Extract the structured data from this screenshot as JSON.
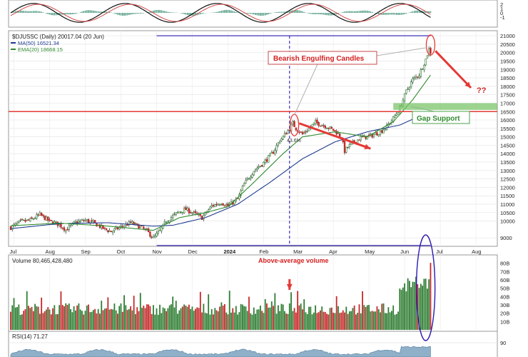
{
  "chart_data": [
    {
      "type": "line",
      "panel": "macd",
      "ylabels": [
        "2",
        "1",
        "0",
        "-1"
      ],
      "yticks": [
        2,
        1,
        0,
        -1
      ]
    },
    {
      "type": "candlestick",
      "panel": "price",
      "title": "$DJUSSC (Daily) 20017.04 (20 Jun)",
      "legend": [
        {
          "label": "MA(50) 16521.34",
          "color": "#1f3b8f"
        },
        {
          "label": "EMA(20) 18668.15",
          "color": "#2f8a2f"
        }
      ],
      "ylabels": [
        "21000",
        "20500",
        "20000",
        "19500",
        "19000",
        "18500",
        "18000",
        "17500",
        "17000",
        "16500",
        "16000",
        "15500",
        "15000",
        "14500",
        "14000",
        "13500",
        "13000",
        "12500",
        "12000",
        "11500",
        "11000",
        "10500",
        "10000",
        "9000"
      ],
      "yticks": [
        21000,
        20500,
        20000,
        19500,
        19000,
        18500,
        18000,
        17500,
        17000,
        16500,
        16000,
        15500,
        15000,
        14500,
        14000,
        13500,
        13000,
        12500,
        12000,
        11500,
        11000,
        10500,
        10000,
        9000
      ],
      "ylim": [
        8500,
        21300
      ],
      "xlabels": [
        "Jul",
        "Aug",
        "Sep",
        "Oct",
        "Nov",
        "Dec",
        "2024",
        "Feb",
        "Mar",
        "Apr",
        "May",
        "Jun",
        "Jul",
        "Aug"
      ],
      "xtick_index": [
        2,
        24,
        46,
        68,
        90,
        112,
        134,
        156,
        177,
        199,
        221,
        243,
        265,
        287
      ],
      "close_path": [
        [
          0,
          9620
        ],
        [
          6,
          9950
        ],
        [
          12,
          10050
        ],
        [
          18,
          10380
        ],
        [
          24,
          9980
        ],
        [
          30,
          9790
        ],
        [
          34,
          9480
        ],
        [
          40,
          9920
        ],
        [
          46,
          10050
        ],
        [
          52,
          9850
        ],
        [
          58,
          9520
        ],
        [
          62,
          9380
        ],
        [
          68,
          9650
        ],
        [
          74,
          9900
        ],
        [
          80,
          9650
        ],
        [
          84,
          9400
        ],
        [
          88,
          9000
        ],
        [
          92,
          9400
        ],
        [
          96,
          10000
        ],
        [
          100,
          10300
        ],
        [
          104,
          10550
        ],
        [
          108,
          10700
        ],
        [
          114,
          10400
        ],
        [
          118,
          10200
        ],
        [
          124,
          10900
        ],
        [
          130,
          11100
        ],
        [
          134,
          10900
        ],
        [
          140,
          11300
        ],
        [
          144,
          12200
        ],
        [
          150,
          13000
        ],
        [
          156,
          13450
        ],
        [
          162,
          14100
        ],
        [
          166,
          14800
        ],
        [
          168,
          15000
        ],
        [
          172,
          15500
        ],
        [
          174,
          15800
        ],
        [
          176,
          15500
        ],
        [
          180,
          15150
        ],
        [
          184,
          15500
        ],
        [
          188,
          15850
        ],
        [
          194,
          15650
        ],
        [
          200,
          15350
        ],
        [
          204,
          15000
        ],
        [
          206,
          14150
        ],
        [
          208,
          14400
        ],
        [
          212,
          14700
        ],
        [
          216,
          14950
        ],
        [
          222,
          15050
        ],
        [
          228,
          15300
        ],
        [
          232,
          15600
        ],
        [
          236,
          16100
        ],
        [
          240,
          16700
        ],
        [
          244,
          17700
        ],
        [
          248,
          18400
        ],
        [
          252,
          18700
        ],
        [
          256,
          19600
        ],
        [
          258,
          20200
        ],
        [
          259,
          20017
        ]
      ],
      "ma50_path": [
        [
          0,
          9550
        ],
        [
          30,
          9850
        ],
        [
          60,
          9900
        ],
        [
          88,
          9700
        ],
        [
          100,
          9750
        ],
        [
          120,
          10200
        ],
        [
          140,
          11000
        ],
        [
          160,
          12300
        ],
        [
          180,
          13700
        ],
        [
          200,
          14700
        ],
        [
          220,
          15300
        ],
        [
          240,
          15700
        ],
        [
          255,
          16350
        ],
        [
          259,
          16521
        ]
      ],
      "ema20_path": [
        [
          0,
          9720
        ],
        [
          30,
          9880
        ],
        [
          60,
          9700
        ],
        [
          88,
          9450
        ],
        [
          104,
          10200
        ],
        [
          120,
          10500
        ],
        [
          134,
          10850
        ],
        [
          150,
          12300
        ],
        [
          168,
          14000
        ],
        [
          180,
          15000
        ],
        [
          200,
          15300
        ],
        [
          220,
          15000
        ],
        [
          236,
          15900
        ],
        [
          248,
          17200
        ],
        [
          259,
          18668
        ]
      ],
      "seed": 7,
      "annotations": {
        "bearish_label": "Bearish Engulfing Candles",
        "gap_label": "Gap Support",
        "percent_label": "43.6%",
        "question_label": "??"
      },
      "levels": {
        "top_line": 21000,
        "red_line": 16500,
        "bottom_line": 8550,
        "gap_low": 16600,
        "gap_high": 17000
      },
      "reference_index": {
        "vertical": 172,
        "gap_start": 236
      },
      "colors": {
        "up": "#2e7d32",
        "down": "#c62828",
        "red": "#e53935",
        "gap": "#7bc46a",
        "purple": "#2a1bb0"
      }
    },
    {
      "type": "bar",
      "panel": "volume",
      "title": "Volume 80,465,428,480",
      "annotation": "Above-average volume",
      "ylabels": [
        "80B",
        "70B",
        "60B",
        "50B",
        "40B",
        "30B",
        "20B",
        "10B"
      ],
      "yticks": [
        80,
        70,
        60,
        50,
        40,
        30,
        20,
        10
      ],
      "ylim": [
        0,
        90
      ],
      "last_value": 80.47,
      "spike_index": 240,
      "arrow_index": 172
    },
    {
      "type": "area",
      "panel": "rsi",
      "title": "RSI(14) 71.27",
      "ylabels": [
        "90"
      ],
      "yticks": [
        90
      ]
    }
  ]
}
